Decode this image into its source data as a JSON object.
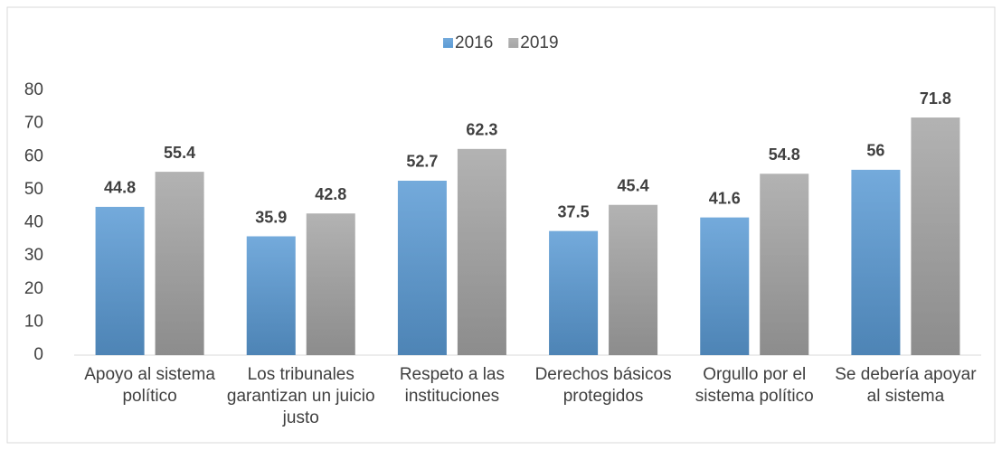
{
  "chart_data": {
    "type": "bar",
    "categories": [
      "Apoyo al sistema político",
      "Los tribunales garantizan un juicio justo",
      "Respeto a las instituciones",
      "Derechos básicos protegidos",
      "Orgullo por el sistema político",
      "Se debería apoyar al sistema"
    ],
    "series": [
      {
        "name": "2016",
        "color": "#5b9bd5",
        "values": [
          44.8,
          35.9,
          52.7,
          37.5,
          41.6,
          56
        ]
      },
      {
        "name": "2019",
        "color": "#a5a5a5",
        "values": [
          55.4,
          42.8,
          62.3,
          45.4,
          54.8,
          71.8
        ]
      }
    ],
    "ylim": [
      0,
      80
    ],
    "yticks": [
      0,
      10,
      20,
      30,
      40,
      50,
      60,
      70,
      80
    ],
    "grid": false,
    "legend": "top"
  }
}
